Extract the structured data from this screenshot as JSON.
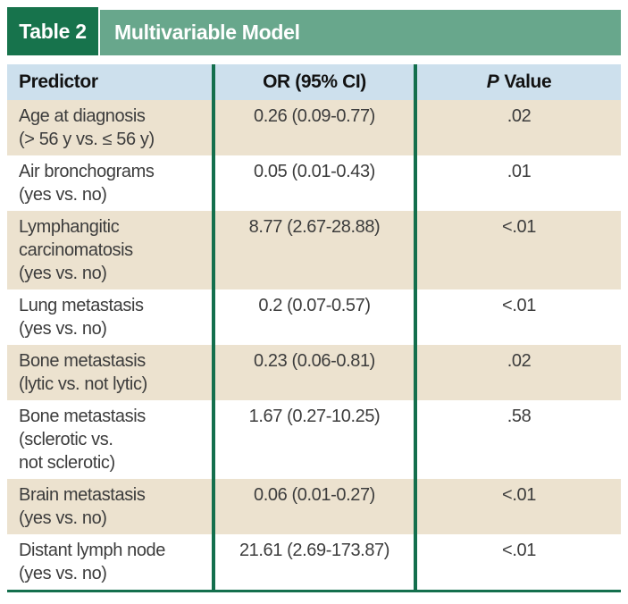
{
  "title_bar": {
    "label": "Table 2",
    "title": "Multivariable Model"
  },
  "columns": {
    "predictor": "Predictor",
    "or_ci": "OR (95% CI)",
    "p_italic": "P",
    "p_rest": "Value"
  },
  "rows": [
    {
      "predictor": "Age at diagnosis\n(> 56 y vs. ≤ 56 y)",
      "or_ci": "0.26 (0.09-0.77)",
      "p": ".02"
    },
    {
      "predictor": "Air bronchograms\n(yes vs. no)",
      "or_ci": "0.05 (0.01-0.43)",
      "p": ".01"
    },
    {
      "predictor": "Lymphangitic\ncarcinomatosis\n(yes vs. no)",
      "or_ci": "8.77 (2.67-28.88)",
      "p": "<.01"
    },
    {
      "predictor": "Lung metastasis\n(yes vs. no)",
      "or_ci": "0.2 (0.07-0.57)",
      "p": "<.01"
    },
    {
      "predictor": "Bone metastasis\n(lytic vs. not lytic)",
      "or_ci": "0.23 (0.06-0.81)",
      "p": ".02"
    },
    {
      "predictor": "Bone metastasis\n(sclerotic vs.\nnot sclerotic)",
      "or_ci": "1.67 (0.27-10.25)",
      "p": ".58"
    },
    {
      "predictor": "Brain metastasis\n(yes vs. no)",
      "or_ci": "0.06 (0.01-0.27)",
      "p": "<.01"
    },
    {
      "predictor": "Distant lymph node\n(yes vs. no)",
      "or_ci": "21.61 (2.69-173.87)",
      "p": "<.01"
    }
  ],
  "colors": {
    "title_label_bg": "#17734c",
    "title_bar_bg": "#68a78c",
    "header_row_bg": "#cde0ed",
    "row_alt_bg": "#ece2cf",
    "separator": "#146f4d",
    "body_text": "#3c3c3c"
  }
}
